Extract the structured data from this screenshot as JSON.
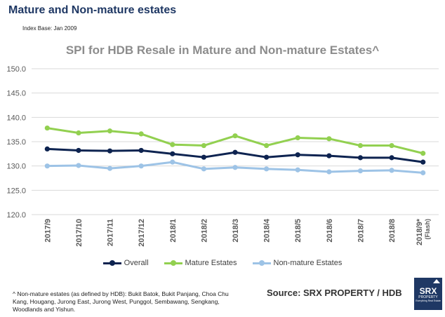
{
  "header": {
    "title": "Mature and Non-mature estates",
    "index_base": "Index Base: Jan 2009"
  },
  "chart_data": {
    "type": "line",
    "title": "SPI for HDB Resale in Mature and Non-mature Estates^",
    "xlabel": "",
    "ylabel": "",
    "ylim": [
      120.0,
      150.0
    ],
    "yticks": [
      "120.0",
      "125.0",
      "130.0",
      "135.0",
      "140.0",
      "145.0",
      "150.0"
    ],
    "grid": "horizontal",
    "legend_position": "bottom",
    "categories": [
      "2017/9",
      "2017/10",
      "2017/11",
      "2017/12",
      "2018/1",
      "2018/2",
      "2018/3",
      "2018/4",
      "2018/5",
      "2018/6",
      "2018/7",
      "2018/8",
      "2018/9*\n(Flash)"
    ],
    "series": [
      {
        "name": "Overall",
        "color": "#0d2350",
        "values": [
          133.5,
          133.2,
          133.1,
          133.2,
          132.5,
          131.8,
          132.8,
          131.8,
          132.3,
          132.1,
          131.7,
          131.7,
          130.8
        ]
      },
      {
        "name": "Mature Estates",
        "color": "#92d050",
        "values": [
          137.8,
          136.8,
          137.2,
          136.6,
          134.4,
          134.2,
          136.2,
          134.2,
          135.8,
          135.6,
          134.2,
          134.2,
          132.6
        ]
      },
      {
        "name": "Non-mature Estates",
        "color": "#9dc3e6",
        "values": [
          130.0,
          130.1,
          129.5,
          130.0,
          130.8,
          129.4,
          129.7,
          129.4,
          129.2,
          128.8,
          129.0,
          129.1,
          128.6
        ]
      }
    ]
  },
  "footnote": "^ Non-mature estates (as defined by HDB): Bukit Batok, Bukit Panjang, Choa Chu Kang, Hougang, Jurong East, Jurong West, Punggol, Sembawang, Sengkang, Woodlands and Yishun.",
  "source": "Source:  SRX PROPERTY / HDB",
  "logo": {
    "main": "SRX",
    "sub": "PROPERTY",
    "tagline": "Everything Real Estate"
  }
}
